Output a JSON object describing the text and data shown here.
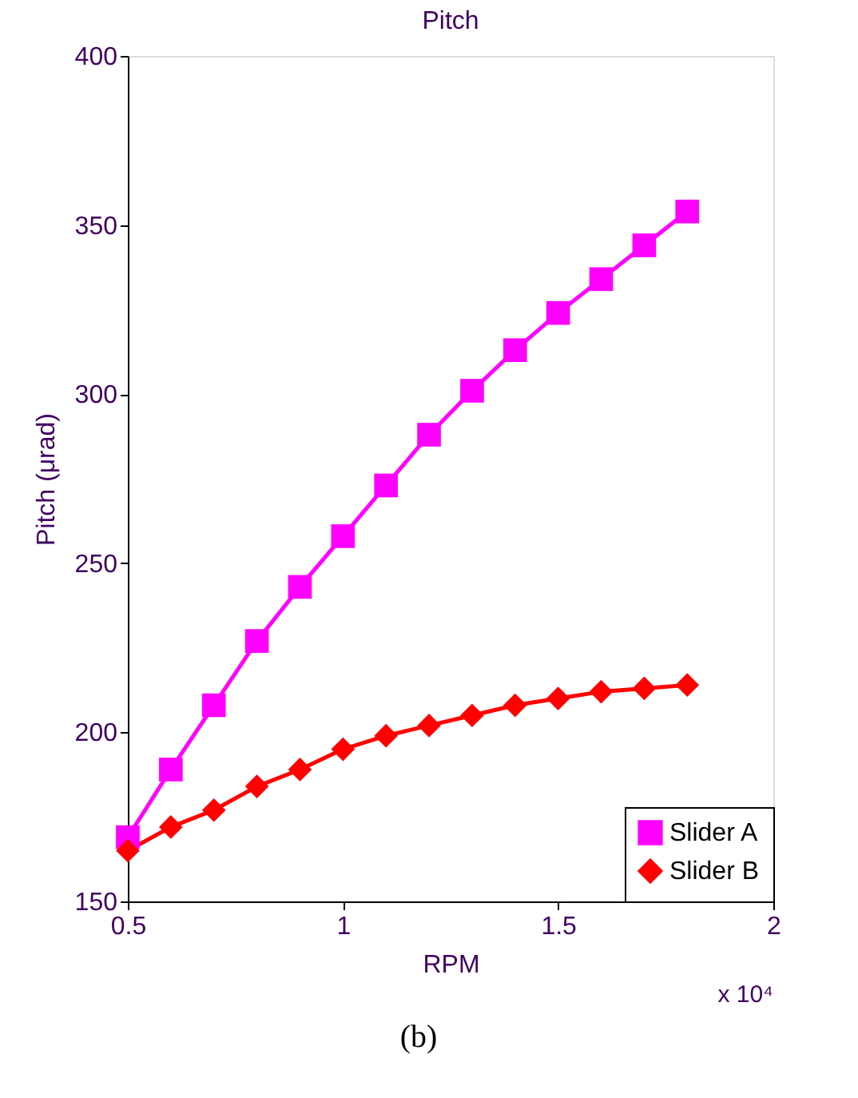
{
  "chart_data": {
    "type": "line",
    "title": "Pitch",
    "xlabel": "RPM",
    "ylabel": "Pitch (μrad)",
    "x": [
      0.5,
      0.6,
      0.7,
      0.8,
      0.9,
      1.0,
      1.1,
      1.2,
      1.3,
      1.4,
      1.5,
      1.6,
      1.7,
      1.8
    ],
    "series": [
      {
        "name": "Slider A",
        "color": "#ff00ff",
        "marker": "square",
        "values": [
          169,
          189,
          208,
          227,
          243,
          258,
          273,
          288,
          301,
          313,
          324,
          334,
          344,
          354
        ]
      },
      {
        "name": "Slider B",
        "color": "#ff0000",
        "marker": "diamond",
        "values": [
          165,
          172,
          177,
          184,
          189,
          195,
          199,
          202,
          205,
          208,
          210,
          212,
          213,
          214
        ]
      }
    ],
    "xlim": [
      0.5,
      2
    ],
    "xticks": [
      0.5,
      1,
      1.5,
      2
    ],
    "ylim": [
      150,
      400
    ],
    "yticks": [
      150,
      200,
      250,
      300,
      350,
      400
    ],
    "grid": false,
    "legend": "bottom right",
    "line_style": "solid",
    "annotations": [
      "x 10⁴",
      "(b)"
    ]
  }
}
